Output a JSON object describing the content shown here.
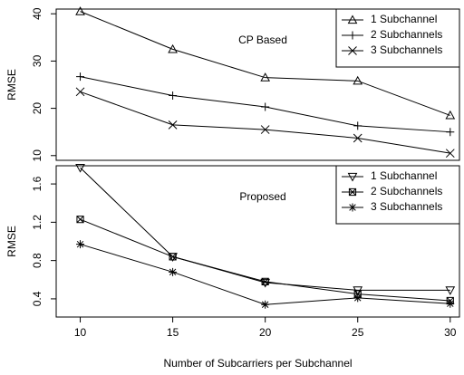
{
  "chart_data": [
    {
      "type": "line",
      "annotation": "CP Based",
      "ylabel": "RMSE",
      "legend": "top right",
      "x": [
        10,
        15,
        20,
        25,
        30
      ],
      "xlim": [
        8.7,
        30.5
      ],
      "ylim": [
        9,
        41
      ],
      "yticks": [
        10,
        20,
        30,
        40
      ],
      "series": [
        {
          "name": "1 Subchannel",
          "color": "#000000",
          "marker": "triangle-up",
          "values": [
            40.5,
            32.5,
            26.5,
            25.8,
            18.5
          ]
        },
        {
          "name": "2 Subchannels",
          "color": "#000000",
          "marker": "plus",
          "values": [
            26.7,
            22.7,
            20.3,
            16.3,
            15
          ]
        },
        {
          "name": "3 Subchannels",
          "color": "#000000",
          "marker": "cross",
          "values": [
            23.5,
            16.5,
            15.5,
            13.7,
            10.5
          ]
        }
      ]
    },
    {
      "type": "line",
      "annotation": "Proposed",
      "ylabel": "RMSE",
      "legend": "top right",
      "xlabel": "Number of Subcarriers per Subchannel",
      "x": [
        10,
        15,
        20,
        25,
        30
      ],
      "xlim": [
        8.7,
        30.5
      ],
      "xticks": [
        10,
        15,
        20,
        25,
        30
      ],
      "ylim": [
        0.21,
        1.79
      ],
      "yticks": [
        0.4,
        0.8,
        1.2,
        1.6
      ],
      "series": [
        {
          "name": "1 Subchannel",
          "color": "#000000",
          "marker": "triangle-down",
          "values": [
            1.77,
            0.84,
            0.57,
            0.49,
            0.49
          ]
        },
        {
          "name": "2 Subchannels",
          "color": "#000000",
          "marker": "boxed-cross",
          "values": [
            1.23,
            0.84,
            0.58,
            0.45,
            0.38
          ]
        },
        {
          "name": "3 Subchannels",
          "color": "#000000",
          "marker": "asterisk",
          "values": [
            0.97,
            0.68,
            0.34,
            0.41,
            0.35
          ]
        }
      ]
    }
  ]
}
